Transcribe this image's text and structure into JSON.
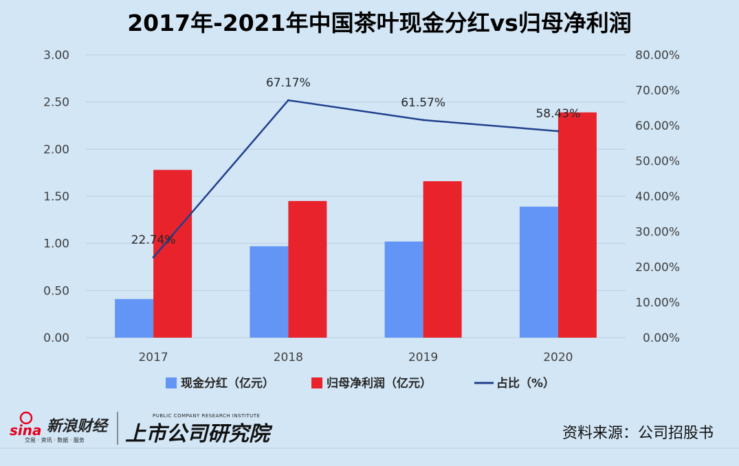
{
  "chart_data": {
    "type": "bar",
    "title": "2017年-2021年中国茶叶现金分红vs归母净利润",
    "categories": [
      "2017",
      "2018",
      "2019",
      "2020"
    ],
    "series": [
      {
        "name": "现金分红（亿元）",
        "type": "bar",
        "axis": "left",
        "color": "#6295f6",
        "values": [
          0.41,
          0.97,
          1.02,
          1.39
        ]
      },
      {
        "name": "归母净利润（亿元）",
        "type": "bar",
        "axis": "left",
        "color": "#e8232b",
        "values": [
          1.78,
          1.45,
          1.66,
          2.39
        ]
      },
      {
        "name": "占比（%）",
        "type": "line",
        "axis": "right",
        "color": "#1f3f8c",
        "values": [
          22.74,
          67.17,
          61.57,
          58.43
        ],
        "labels": [
          "22.74%",
          "67.17%",
          "61.57%",
          "58.43%"
        ]
      }
    ],
    "y_left": {
      "min": 0,
      "max": 3,
      "step": 0.5,
      "tick_labels": [
        "0.00",
        "0.50",
        "1.00",
        "1.50",
        "2.00",
        "2.50",
        "3.00"
      ]
    },
    "y_right": {
      "min": 0,
      "max": 80,
      "step": 10,
      "tick_labels": [
        "0.00%",
        "10.00%",
        "20.00%",
        "30.00%",
        "40.00%",
        "50.00%",
        "60.00%",
        "70.00%",
        "80.00%"
      ]
    },
    "grid": true,
    "legend_position": "bottom"
  },
  "footer": {
    "source": "资料来源：公司招股书",
    "brand_sina": "sina",
    "brand_sina_cn": "新浪财经",
    "brand_sina_sub": "交易 · 资讯 · 数据 · 服务",
    "brand_institute": "上市公司研究院",
    "brand_institute_en": "PUBLIC COMPANY RESEARCH INSTITUTE"
  }
}
